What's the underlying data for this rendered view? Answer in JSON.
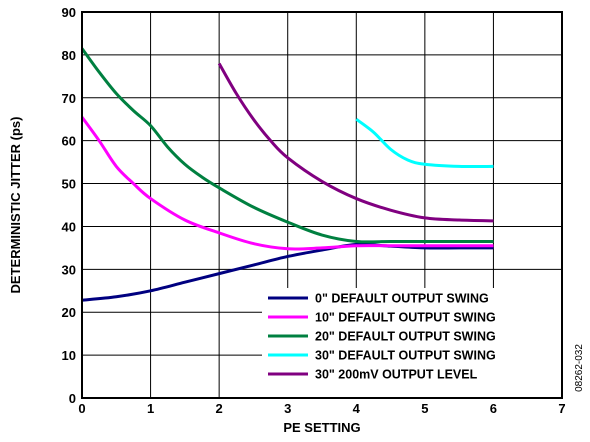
{
  "chart_data": {
    "type": "line",
    "xlabel": "PE SETTING",
    "ylabel": "DETERMINISTIC JITTER (ps)",
    "xlim": [
      0,
      7
    ],
    "ylim": [
      0,
      90
    ],
    "xticks": [
      0,
      1,
      2,
      3,
      4,
      5,
      6,
      7
    ],
    "yticks": [
      0,
      10,
      20,
      30,
      40,
      50,
      60,
      70,
      80,
      90
    ],
    "grid": true,
    "legend_position": "bottom-right",
    "figure_id": "08262-032",
    "series": [
      {
        "name": "0\" DEFAULT OUTPUT SWING",
        "color": "#000080",
        "x": [
          0,
          0.5,
          1,
          1.5,
          2,
          2.5,
          3,
          3.5,
          4,
          4.5,
          5,
          5.5,
          6
        ],
        "y": [
          22.8,
          23.6,
          25.0,
          27.0,
          29.0,
          31.0,
          33.0,
          34.5,
          35.8,
          35.4,
          35.0,
          35.0,
          35.0
        ]
      },
      {
        "name": "10\" DEFAULT OUTPUT SWING",
        "color": "#ff00ff",
        "x": [
          0,
          0.25,
          0.5,
          0.75,
          1,
          1.5,
          2,
          2.5,
          3,
          3.5,
          4,
          4.5,
          5,
          5.5,
          6
        ],
        "y": [
          65.5,
          60.0,
          54.0,
          50.0,
          46.5,
          41.5,
          38.5,
          36.0,
          34.8,
          35.0,
          35.5,
          35.5,
          35.5,
          35.5,
          35.5
        ]
      },
      {
        "name": "20\" DEFAULT OUTPUT SWING",
        "color": "#008040",
        "x": [
          0,
          0.25,
          0.5,
          0.75,
          1,
          1.25,
          1.5,
          1.75,
          2,
          2.5,
          3,
          3.5,
          4,
          4.5,
          5,
          5.5,
          6
        ],
        "y": [
          81.5,
          76.0,
          71.0,
          67.0,
          63.5,
          58.5,
          54.5,
          51.5,
          49.0,
          44.5,
          41.0,
          38.0,
          36.5,
          36.5,
          36.5,
          36.5,
          36.5
        ]
      },
      {
        "name": "30\" DEFAULT OUTPUT SWING",
        "color": "#00ffff",
        "x": [
          4,
          4.25,
          4.5,
          4.75,
          5,
          5.5,
          6
        ],
        "y": [
          65.0,
          62.0,
          58.0,
          55.5,
          54.5,
          54.0,
          54.0
        ]
      },
      {
        "name": "30\" 200mV OUTPUT LEVEL",
        "color": "#800080",
        "x": [
          2,
          2.25,
          2.5,
          2.75,
          3,
          3.5,
          4,
          4.5,
          5,
          5.5,
          6
        ],
        "y": [
          78.0,
          71.0,
          65.0,
          60.0,
          56.0,
          50.5,
          46.5,
          43.8,
          42.0,
          41.5,
          41.3
        ]
      }
    ]
  }
}
